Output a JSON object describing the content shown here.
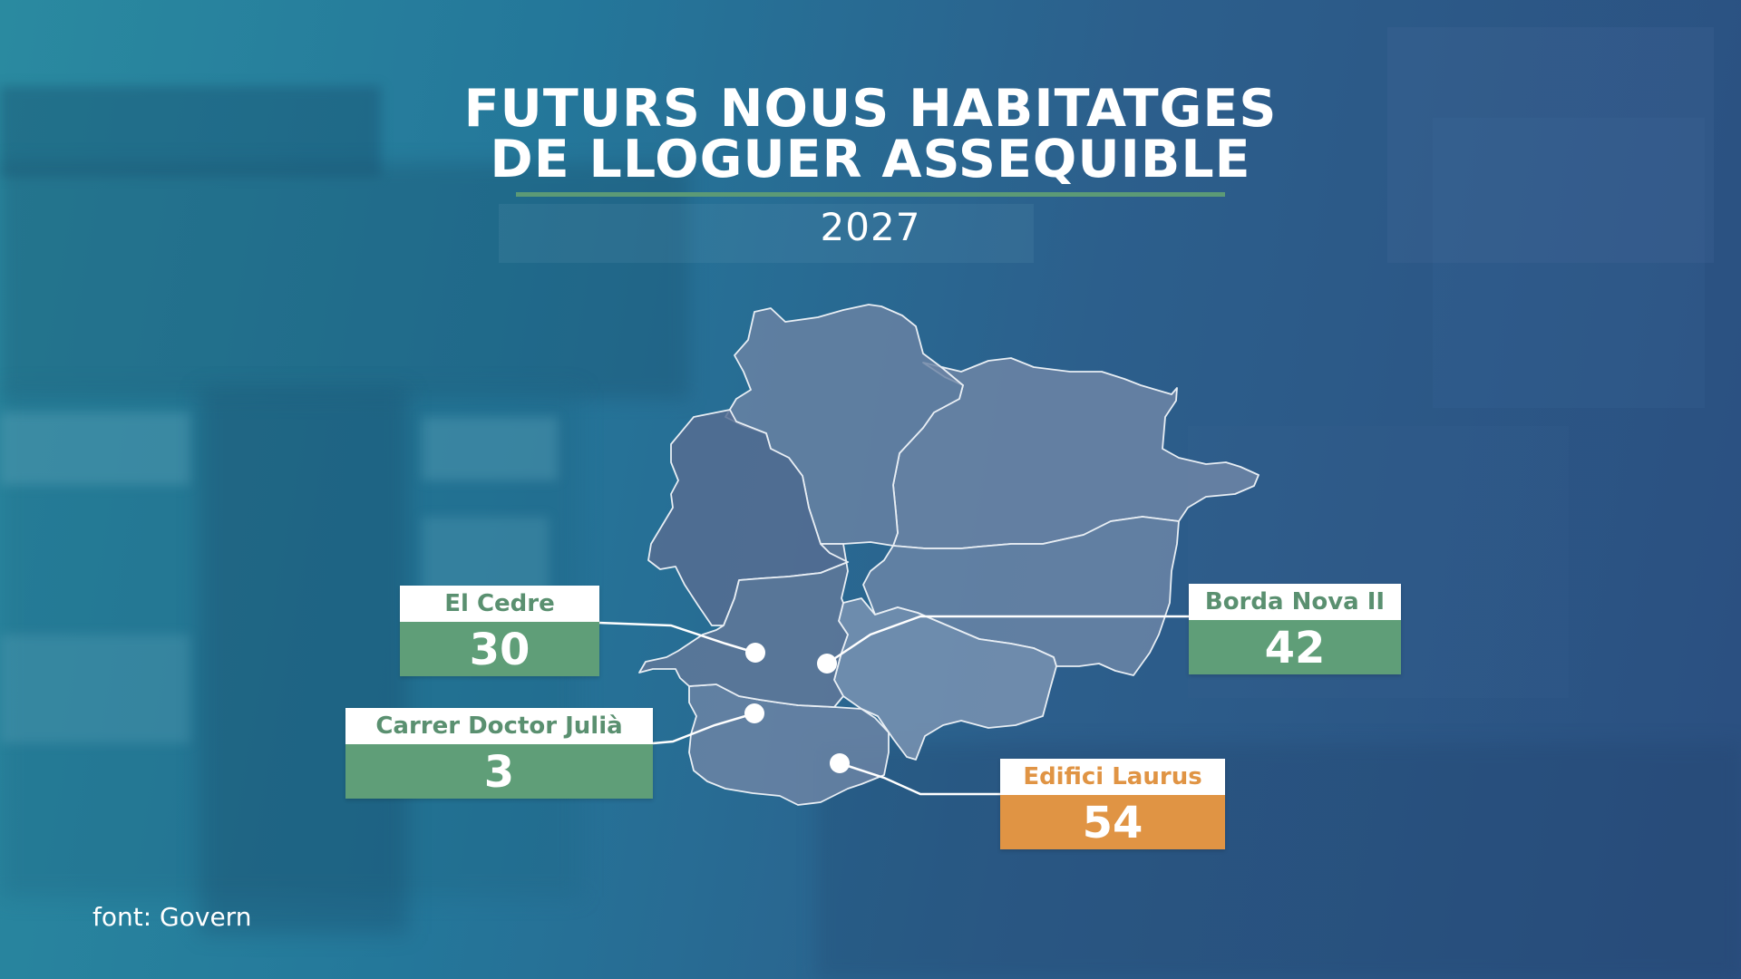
{
  "title_line1": "FUTURS NOUS HABITATGES",
  "title_line2": "DE LLOGUER ASSEQUIBLE",
  "year": "2027",
  "source": "font: Govern",
  "colors": {
    "green": "#5f9e78",
    "orange": "#e09444",
    "parish_fill": "#7088a8",
    "white": "#ffffff"
  },
  "locations": [
    {
      "name": "El Cedre",
      "value": "30",
      "color": "green"
    },
    {
      "name": "Borda Nova II",
      "value": "42",
      "color": "green"
    },
    {
      "name": "Carrer Doctor Julià",
      "value": "3",
      "color": "green"
    },
    {
      "name": "Edifici Laurus",
      "value": "54",
      "color": "orange"
    }
  ]
}
